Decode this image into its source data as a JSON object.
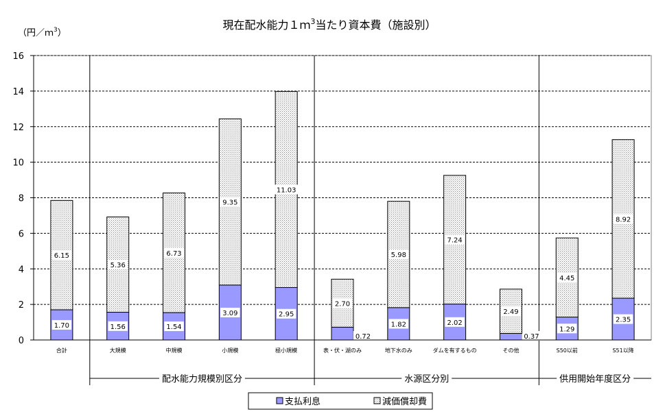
{
  "chart_data": {
    "type": "bar",
    "stacked": true,
    "title": "現在配水能力１ｍ",
    "title_superscript": "3",
    "title_suffix": "当たり資本費（施設別）",
    "ylabel": "（円／ｍ",
    "ylabel_superscript": "3",
    "ylabel_suffix": "）",
    "ylim": [
      0,
      16
    ],
    "yticks": [
      0,
      2,
      4,
      6,
      8,
      10,
      12,
      14,
      16
    ],
    "grid": true,
    "legend_position": "bottom",
    "categories": [
      "合計",
      "大規模",
      "中規模",
      "小規模",
      "極小規模",
      "表・伏・湖のみ",
      "地下水のみ",
      "ダムを有するもの",
      "その他",
      "S50以前",
      "S51以降"
    ],
    "groups": [
      {
        "label": "配水能力規模別区分",
        "categories": [
          "大規模",
          "中規模",
          "小規模",
          "極小規模"
        ]
      },
      {
        "label": "水源区分別",
        "categories": [
          "表・伏・湖のみ",
          "地下水のみ",
          "ダムを有するもの",
          "その他"
        ]
      },
      {
        "label": "供用開始年度区分",
        "categories": [
          "S50以前",
          "S51以降"
        ]
      }
    ],
    "series": [
      {
        "name": "支払利息",
        "color": "#9999ff",
        "values": [
          1.7,
          1.56,
          1.54,
          3.09,
          2.95,
          0.72,
          1.82,
          2.02,
          0.37,
          1.29,
          2.35
        ],
        "labels": [
          "1.70",
          "1.56",
          "1.54",
          "3.09",
          "2.95",
          "0.72",
          "1.82",
          "2.02",
          "0.37",
          "1.29",
          "2.35"
        ]
      },
      {
        "name": "減価償却費",
        "color": "#d0d0d0",
        "values": [
          6.15,
          5.36,
          6.73,
          9.35,
          11.03,
          2.7,
          5.98,
          7.24,
          2.49,
          4.45,
          8.92
        ],
        "labels": [
          "6.15",
          "5.36",
          "6.73",
          "9.35",
          "11.03",
          "2.70",
          "5.98",
          "7.24",
          "2.49",
          "4.45",
          "8.92"
        ]
      }
    ]
  }
}
